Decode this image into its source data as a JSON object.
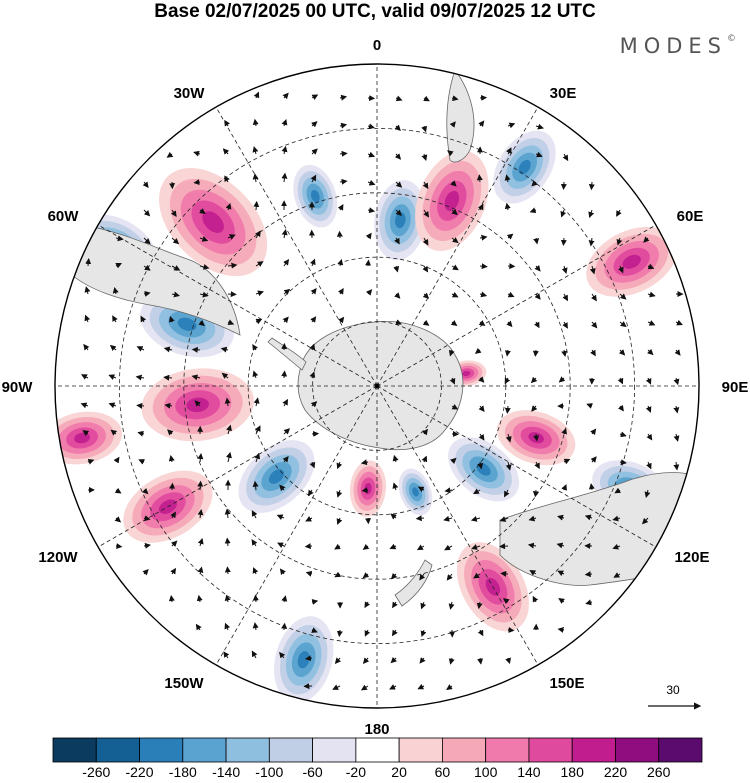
{
  "title": "Base 02/07/2025 00 UTC, valid 09/07/2025 12 UTC",
  "brand": "MODES",
  "brand_mark": "©",
  "longitude_labels": {
    "lon0": "0",
    "lon30e": "30E",
    "lon60e": "60E",
    "lon90e": "90E",
    "lon120e": "120E",
    "lon150e": "150E",
    "lon180": "180",
    "lon150w": "150W",
    "lon120w": "120W",
    "lon90w": "90W",
    "lon60w": "60W",
    "lon30w": "30W"
  },
  "reference_vector": {
    "label": "30"
  },
  "colorbar": {
    "colors": [
      "#0b3b5e",
      "#145f93",
      "#2a7fb8",
      "#5aa2cf",
      "#8fbfdf",
      "#c0cfe6",
      "#e3e3f1",
      "#ffffff",
      "#f9d3d3",
      "#f5a9b8",
      "#ef7aab",
      "#e04a9e",
      "#c11d8f",
      "#8f0d7f",
      "#5b0a6e"
    ],
    "labels": [
      "-260",
      "-220",
      "-180",
      "-140",
      "-100",
      "-60",
      "-20",
      "20",
      "60",
      "100",
      "140",
      "180",
      "220",
      "260"
    ]
  },
  "anomaly_features": [
    {
      "type": "neg",
      "lon": -62,
      "r_frac": 0.92,
      "size": 0.11
    },
    {
      "type": "pos",
      "lon": -45,
      "r_frac": 0.72,
      "size": 0.16
    },
    {
      "type": "neg",
      "lon": -18,
      "r_frac": 0.62,
      "size": 0.08
    },
    {
      "type": "neg",
      "lon": 8,
      "r_frac": 0.52,
      "size": 0.1
    },
    {
      "type": "pos",
      "lon": 22,
      "r_frac": 0.62,
      "size": 0.13
    },
    {
      "type": "neg",
      "lon": 34,
      "r_frac": 0.82,
      "size": 0.1
    },
    {
      "type": "pos",
      "lon": 64,
      "r_frac": 0.88,
      "size": 0.12
    },
    {
      "type": "neg",
      "lon": -72,
      "r_frac": 0.62,
      "size": 0.12
    },
    {
      "type": "pos",
      "lon": -96,
      "r_frac": 0.56,
      "size": 0.14
    },
    {
      "type": "pos",
      "lon": -100,
      "r_frac": 0.93,
      "size": 0.1
    },
    {
      "type": "neg",
      "lon": -132,
      "r_frac": 0.42,
      "size": 0.11
    },
    {
      "type": "pos",
      "lon": -120,
      "r_frac": 0.75,
      "size": 0.12
    },
    {
      "type": "neg",
      "lon": -165,
      "r_frac": 0.88,
      "size": 0.11
    },
    {
      "type": "pos",
      "lon": -175,
      "r_frac": 0.32,
      "size": 0.07
    },
    {
      "type": "pos",
      "lon": 150,
      "r_frac": 0.72,
      "size": 0.12
    },
    {
      "type": "neg",
      "lon": 128,
      "r_frac": 0.42,
      "size": 0.1
    },
    {
      "type": "pos",
      "lon": 108,
      "r_frac": 0.52,
      "size": 0.1
    },
    {
      "type": "neg",
      "lon": 112,
      "r_frac": 0.85,
      "size": 0.1
    },
    {
      "type": "neg",
      "lon": 160,
      "r_frac": 0.35,
      "size": 0.06
    },
    {
      "type": "pos",
      "lon": 82,
      "r_frac": 0.28,
      "size": 0.05
    }
  ]
}
